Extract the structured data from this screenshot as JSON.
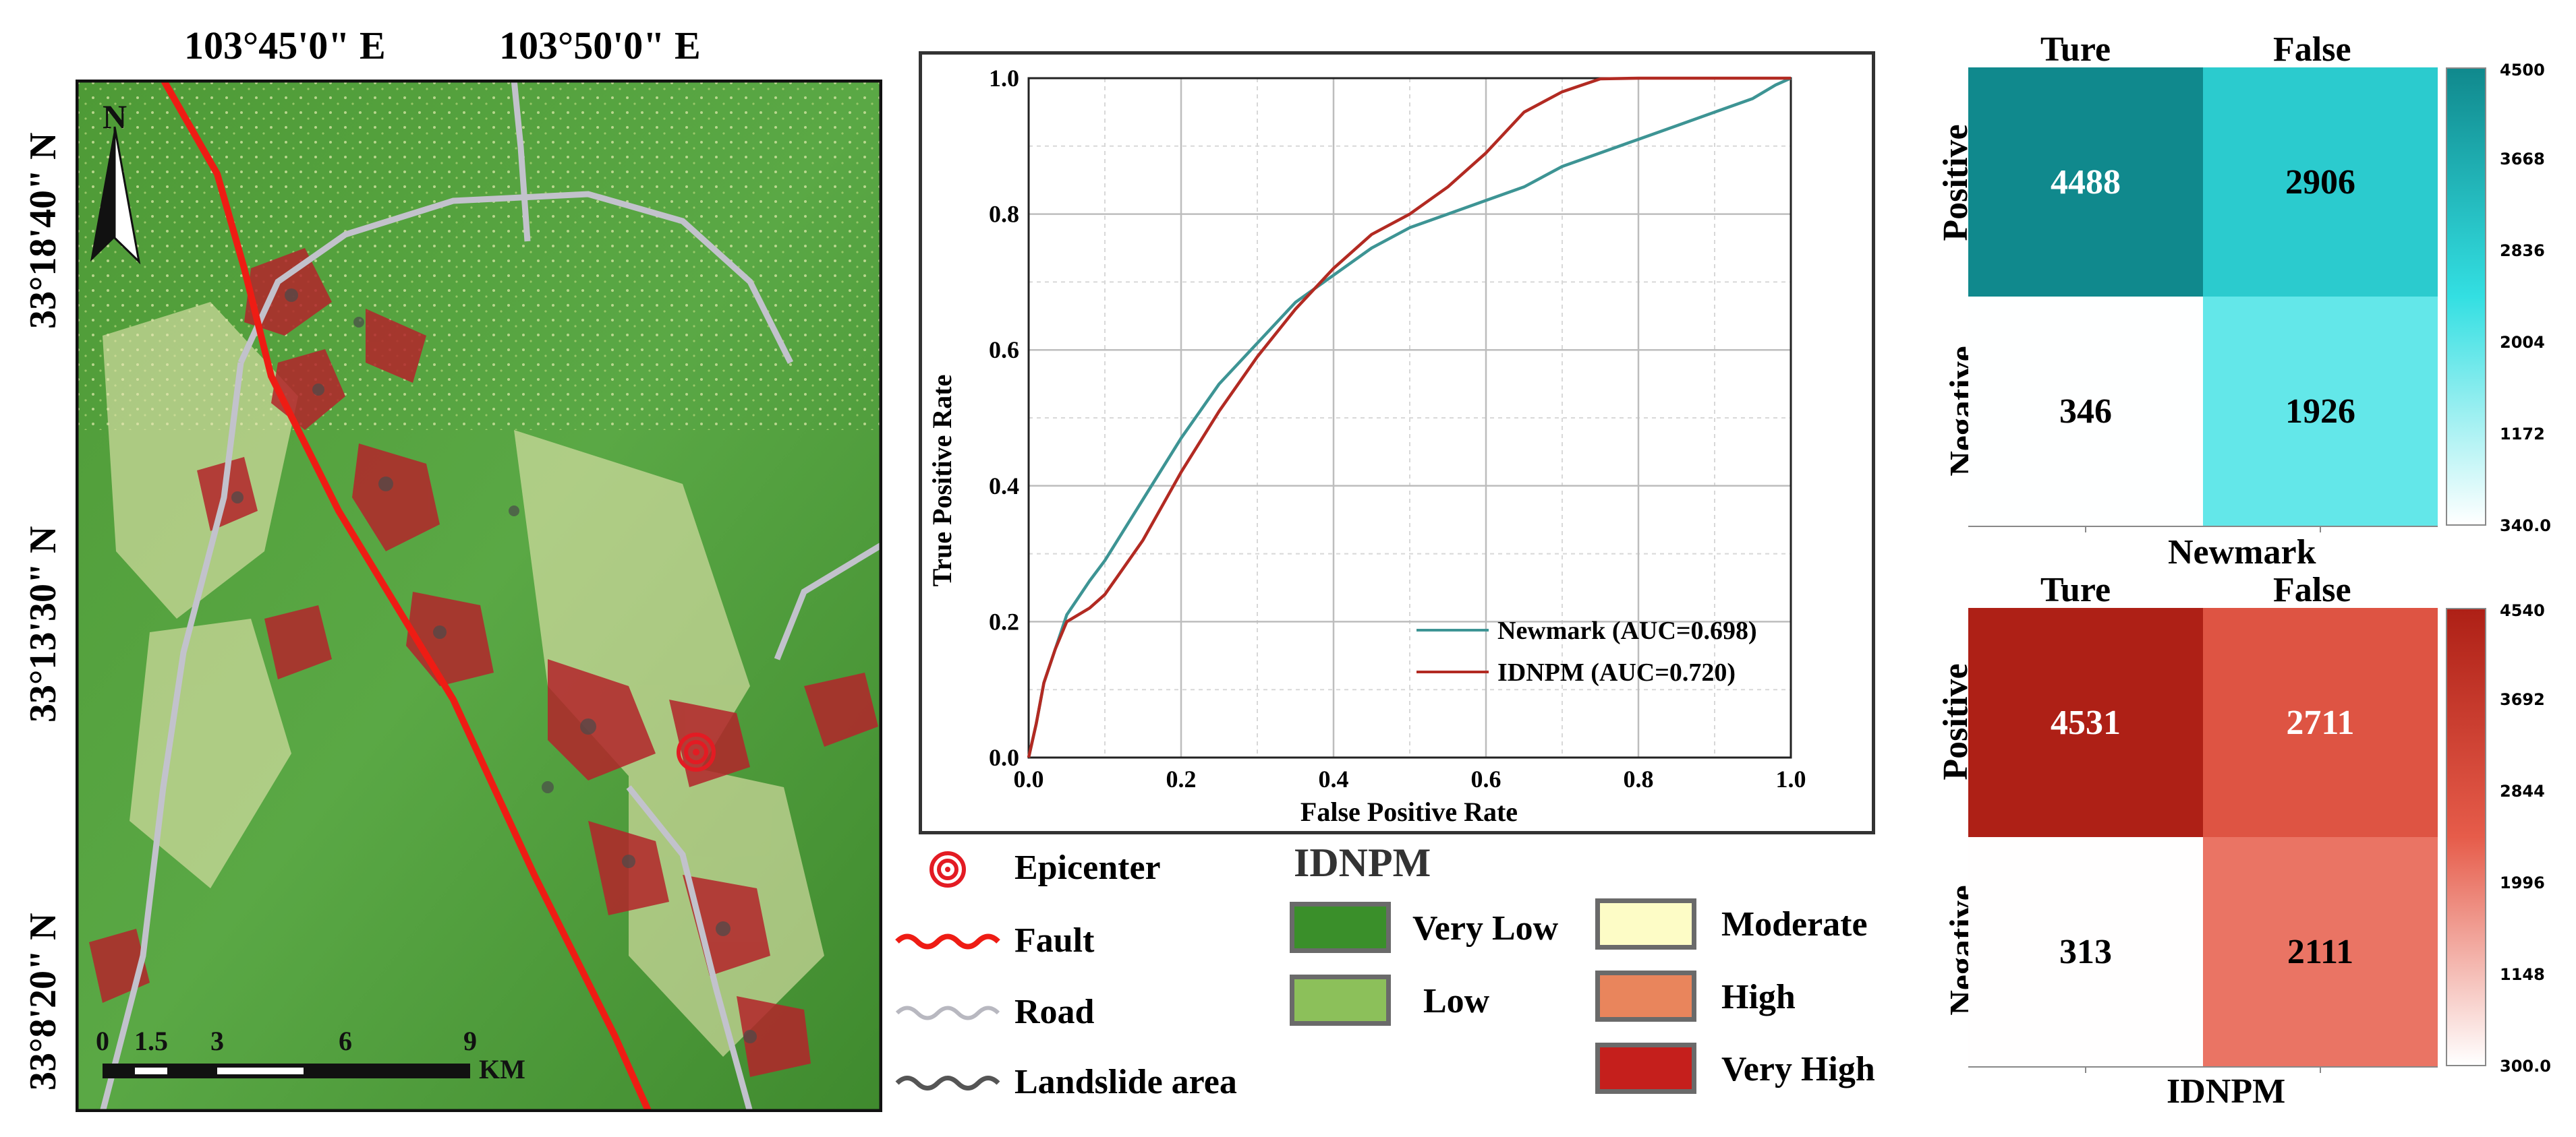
{
  "map": {
    "top_coords": [
      "103°45'0\" E",
      "103°50'0\" E"
    ],
    "left_coords": [
      "33°18'40\" N",
      "33°13'30\" N",
      "33°8'20\" N"
    ],
    "north_label": "N",
    "scale_ticks": [
      "0",
      "1.5",
      "3",
      "6",
      "9"
    ],
    "scale_unit": "KM"
  },
  "legend": {
    "epicenter": "Epicenter",
    "fault": "Fault",
    "road": "Road",
    "landslide": "Landslide area",
    "title": "IDNPM",
    "classes": [
      {
        "label": "Very Low",
        "color": "#3a8f2a"
      },
      {
        "label": "Low",
        "color": "#8cc05a"
      },
      {
        "label": "Moderate",
        "color": "#fdfcc6"
      },
      {
        "label": "High",
        "color": "#e9855c"
      },
      {
        "label": "Very High",
        "color": "#c51f1c"
      }
    ]
  },
  "chart_data": [
    {
      "type": "line",
      "title": "",
      "xlabel": "False Positive Rate",
      "ylabel": "True Positive Rate",
      "xlim": [
        0,
        1
      ],
      "ylim": [
        0,
        1
      ],
      "x_ticks": [
        "0.0",
        "0.2",
        "0.4",
        "0.6",
        "0.8",
        "1.0"
      ],
      "y_ticks": [
        "0.0",
        "0.2",
        "0.4",
        "0.6",
        "0.8",
        "1.0"
      ],
      "grid": true,
      "legend_position": "bottom-right",
      "series": [
        {
          "name": "Newmark (AUC=0.698)",
          "color": "#3d9494",
          "x": [
            0,
            0.01,
            0.02,
            0.035,
            0.05,
            0.08,
            0.1,
            0.15,
            0.2,
            0.25,
            0.3,
            0.35,
            0.4,
            0.45,
            0.5,
            0.55,
            0.6,
            0.65,
            0.7,
            0.75,
            0.8,
            0.85,
            0.9,
            0.95,
            0.98,
            1.0
          ],
          "y": [
            0,
            0.05,
            0.11,
            0.16,
            0.21,
            0.26,
            0.29,
            0.38,
            0.47,
            0.55,
            0.61,
            0.67,
            0.71,
            0.75,
            0.78,
            0.8,
            0.82,
            0.84,
            0.87,
            0.89,
            0.91,
            0.93,
            0.95,
            0.97,
            0.99,
            1.0
          ]
        },
        {
          "name": "IDNPM (AUC=0.720)",
          "color": "#b22a22",
          "x": [
            0,
            0.01,
            0.02,
            0.035,
            0.05,
            0.08,
            0.1,
            0.15,
            0.2,
            0.25,
            0.3,
            0.35,
            0.4,
            0.45,
            0.5,
            0.55,
            0.6,
            0.65,
            0.7,
            0.75,
            0.8,
            0.9,
            1.0
          ],
          "y": [
            0,
            0.05,
            0.11,
            0.16,
            0.2,
            0.22,
            0.24,
            0.32,
            0.42,
            0.51,
            0.59,
            0.66,
            0.72,
            0.77,
            0.8,
            0.84,
            0.89,
            0.95,
            0.98,
            0.999,
            1.0,
            1.0,
            1.0
          ]
        }
      ]
    },
    {
      "type": "heatmap",
      "title": "Newmark",
      "col_labels": [
        "Ture",
        "False"
      ],
      "row_labels": [
        "Positive",
        "Negative"
      ],
      "values": [
        [
          4488,
          2906
        ],
        [
          346,
          1926
        ]
      ],
      "colorbar_ticks": [
        "4500",
        "3668",
        "2836",
        "2004",
        "1172",
        "340.0"
      ],
      "vmin": 340,
      "vmax": 4500,
      "colors": {
        "low": "#ffffff",
        "mid": "#33dfe2",
        "high": "#10898d"
      }
    },
    {
      "type": "heatmap",
      "title": "IDNPM",
      "col_labels": [
        "Ture",
        "False"
      ],
      "row_labels": [
        "Positive",
        "Negative"
      ],
      "values": [
        [
          4531,
          2711
        ],
        [
          313,
          2111
        ]
      ],
      "colorbar_ticks": [
        "4540",
        "3692",
        "2844",
        "1996",
        "1148",
        "300.0"
      ],
      "vmin": 300,
      "vmax": 4540,
      "colors": {
        "low": "#ffffff",
        "mid": "#e65c4a",
        "high": "#ae2016"
      }
    }
  ]
}
